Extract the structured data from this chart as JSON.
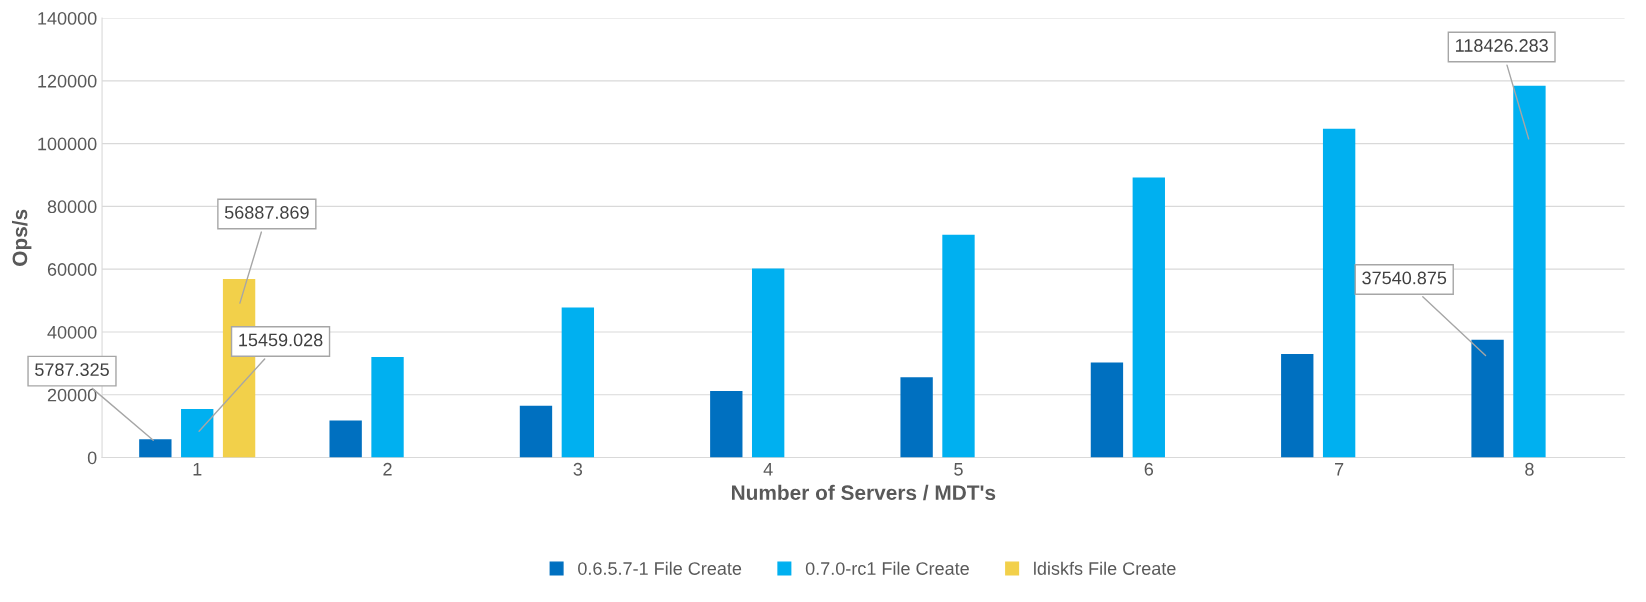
{
  "chart_data": {
    "type": "bar",
    "xlabel": "Number of Servers / MDT's",
    "ylabel": "Ops/s",
    "categories": [
      "1",
      "2",
      "3",
      "4",
      "5",
      "6",
      "7",
      "8"
    ],
    "series": [
      {
        "name": "0.6.5.7-1 File Create",
        "color": "#0070c0",
        "values": [
          5787.325,
          11800,
          16500,
          21200,
          25600,
          30300,
          33000,
          37540.875
        ],
        "value_labels": [
          "5787.325",
          null,
          null,
          null,
          null,
          null,
          null,
          "37540.875"
        ]
      },
      {
        "name": "0.7.0-rc1 File Create",
        "color": "#00b0f0",
        "values": [
          15459.028,
          32000,
          47800,
          60200,
          71000,
          89200,
          104700,
          118426.283
        ],
        "value_labels": [
          "15459.028",
          null,
          null,
          null,
          null,
          null,
          null,
          "118426.283"
        ]
      },
      {
        "name": "ldiskfs File Create",
        "color": "#f2d04a",
        "values": [
          56887.869,
          null,
          null,
          null,
          null,
          null,
          null,
          null
        ],
        "value_labels": [
          "56887.869",
          null,
          null,
          null,
          null,
          null,
          null,
          null
        ]
      }
    ],
    "ylim": [
      0,
      140000
    ],
    "yticks": [
      0,
      20000,
      40000,
      60000,
      80000,
      100000,
      120000,
      140000
    ],
    "grid": "y",
    "legend": "bottom"
  }
}
